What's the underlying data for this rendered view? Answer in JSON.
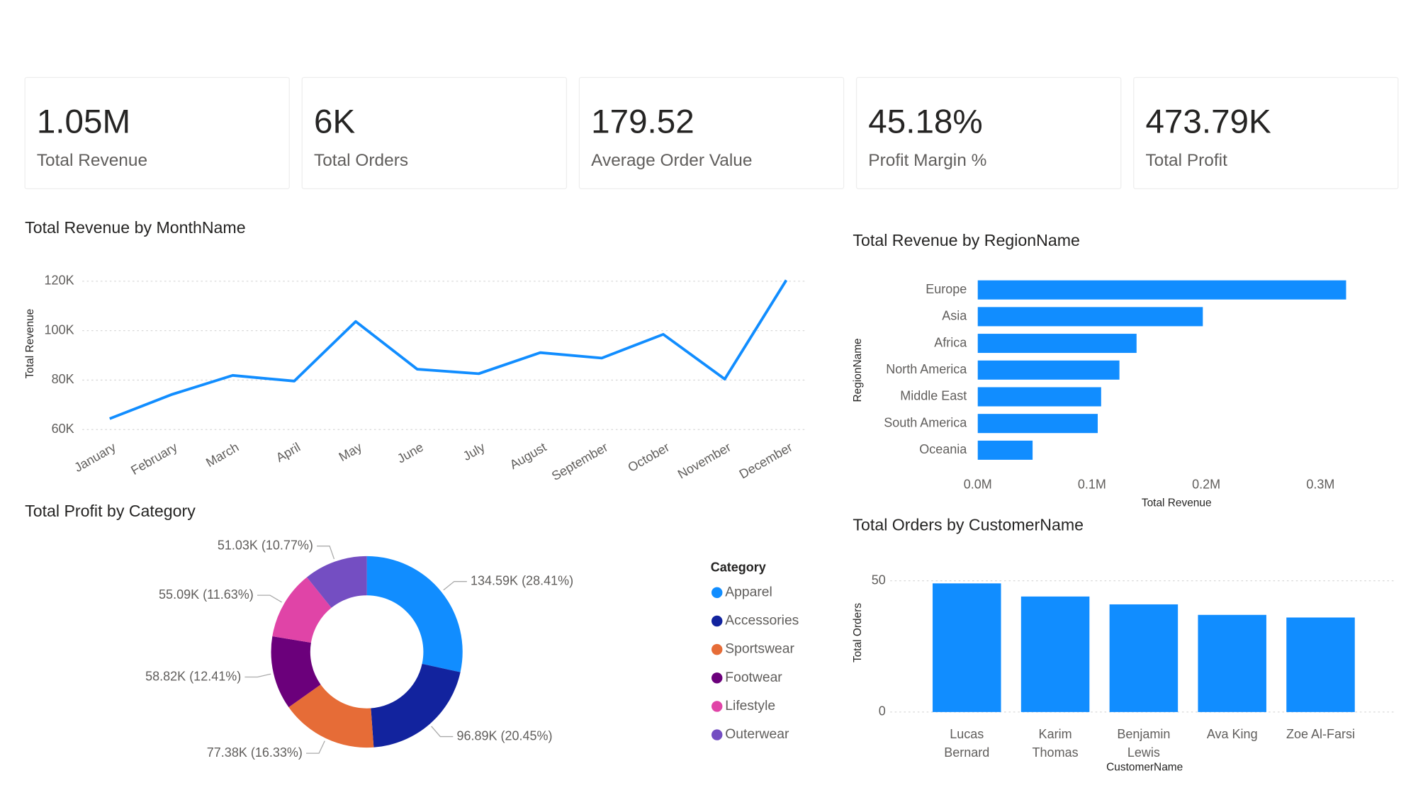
{
  "kpis": [
    {
      "value": "1.05M",
      "label": "Total Revenue"
    },
    {
      "value": "6K",
      "label": "Total Orders"
    },
    {
      "value": "179.52",
      "label": "Average Order Value"
    },
    {
      "value": "45.18%",
      "label": "Profit Margin %"
    },
    {
      "value": "473.79K",
      "label": "Total Profit"
    }
  ],
  "chart_data": [
    {
      "type": "line",
      "title": "Total Revenue by MonthName",
      "y_label": "Total Revenue",
      "categories": [
        "January",
        "February",
        "March",
        "April",
        "May",
        "June",
        "July",
        "August",
        "September",
        "October",
        "November",
        "December"
      ],
      "values": [
        64400,
        74100,
        81900,
        79600,
        103700,
        84400,
        82600,
        91100,
        88900,
        98500,
        80400,
        120400
      ],
      "color": "#118DFF",
      "ylim": [
        56000,
        122000
      ],
      "yticks": [
        {
          "value": 60000,
          "label": "60K"
        },
        {
          "value": 80000,
          "label": "80K"
        },
        {
          "value": 100000,
          "label": "100K"
        },
        {
          "value": 120000,
          "label": "120K"
        }
      ],
      "grid": true
    },
    {
      "type": "bar",
      "orientation": "horizontal",
      "title": "Total Revenue by RegionName",
      "x_label": "Total Revenue",
      "y_label": "RegionName",
      "categories": [
        "Europe",
        "Asia",
        "Africa",
        "North America",
        "Middle East",
        "South America",
        "Oceania"
      ],
      "values": [
        322400,
        197000,
        139000,
        124000,
        108000,
        105000,
        48000
      ],
      "color": "#118DFF",
      "xlim": [
        0,
        340000
      ],
      "xticks": [
        {
          "value": 0,
          "label": "0.0M"
        },
        {
          "value": 100000,
          "label": "0.1M"
        },
        {
          "value": 200000,
          "label": "0.2M"
        },
        {
          "value": 300000,
          "label": "0.3M"
        }
      ]
    },
    {
      "type": "pie",
      "donut": true,
      "title": "Total Profit by Category",
      "legend_title": "Category",
      "categories": [
        "Apparel",
        "Accessories",
        "Sportswear",
        "Footwear",
        "Lifestyle",
        "Outerwear"
      ],
      "values": [
        134590,
        96890,
        77380,
        58820,
        55090,
        51030
      ],
      "value_labels": [
        "134.59K (28.41%)",
        "96.89K (20.45%)",
        "77.38K (16.33%)",
        "58.82K (12.41%)",
        "55.09K (11.63%)",
        "51.03K (10.77%)"
      ],
      "colors": [
        "#118DFF",
        "#12239E",
        "#E66C37",
        "#6B007B",
        "#E044A7",
        "#744EC2"
      ]
    },
    {
      "type": "bar",
      "orientation": "vertical",
      "title": "Total Orders by CustomerName",
      "x_label": "CustomerName",
      "y_label": "Total Orders",
      "categories": [
        "Lucas Bernard",
        "Karim Thomas",
        "Benjamin Lewis",
        "Ava King",
        "Zoe Al-Farsi"
      ],
      "values": [
        49,
        44,
        41,
        37,
        36
      ],
      "color": "#118DFF",
      "ylim": [
        0,
        50
      ],
      "yticks": [
        0,
        50
      ],
      "grid": true
    }
  ]
}
